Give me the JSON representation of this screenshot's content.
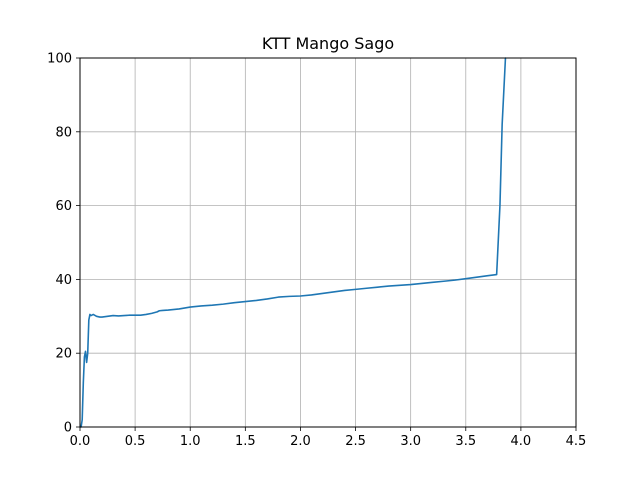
{
  "chart_data": {
    "type": "line",
    "title": "KTT Mango Sago",
    "xlabel": "",
    "ylabel": "",
    "xlim": [
      0,
      4.5
    ],
    "ylim": [
      0,
      100
    ],
    "xticks": [
      0,
      0.5,
      1,
      1.5,
      2,
      2.5,
      3,
      3.5,
      4,
      4.5
    ],
    "xtick_labels": [
      "0.0",
      "0.5",
      "1.0",
      "1.5",
      "2.0",
      "2.5",
      "3.0",
      "3.5",
      "4.0",
      "4.5"
    ],
    "yticks": [
      0,
      20,
      40,
      60,
      80,
      100
    ],
    "ytick_labels": [
      "0",
      "20",
      "40",
      "60",
      "80",
      "100"
    ],
    "grid": true,
    "series": [
      {
        "color": "#1f77b4",
        "x": [
          0.0,
          0.01,
          0.02,
          0.03,
          0.04,
          0.05,
          0.06,
          0.07,
          0.08,
          0.09,
          0.1,
          0.12,
          0.15,
          0.18,
          0.2,
          0.25,
          0.3,
          0.35,
          0.4,
          0.45,
          0.5,
          0.55,
          0.6,
          0.65,
          0.7,
          0.72,
          0.75,
          0.8,
          0.9,
          1.0,
          1.1,
          1.2,
          1.3,
          1.4,
          1.5,
          1.6,
          1.7,
          1.8,
          1.9,
          2.0,
          2.1,
          2.2,
          2.3,
          2.4,
          2.5,
          2.6,
          2.7,
          2.8,
          2.9,
          3.0,
          3.1,
          3.2,
          3.3,
          3.4,
          3.5,
          3.6,
          3.7,
          3.78,
          3.81,
          3.83,
          3.86
        ],
        "y": [
          0,
          0,
          2,
          12,
          19,
          20.5,
          17.5,
          20,
          29,
          30.5,
          30.2,
          30.5,
          30,
          29.8,
          29.8,
          30,
          30.2,
          30.1,
          30.2,
          30.3,
          30.3,
          30.3,
          30.5,
          30.8,
          31.2,
          31.5,
          31.6,
          31.7,
          32,
          32.5,
          32.8,
          33,
          33.3,
          33.7,
          34,
          34.3,
          34.7,
          35.2,
          35.4,
          35.5,
          35.8,
          36.2,
          36.6,
          37,
          37.3,
          37.6,
          37.9,
          38.2,
          38.4,
          38.6,
          38.9,
          39.2,
          39.5,
          39.8,
          40.2,
          40.6,
          41,
          41.3,
          60,
          82,
          100
        ]
      }
    ]
  }
}
